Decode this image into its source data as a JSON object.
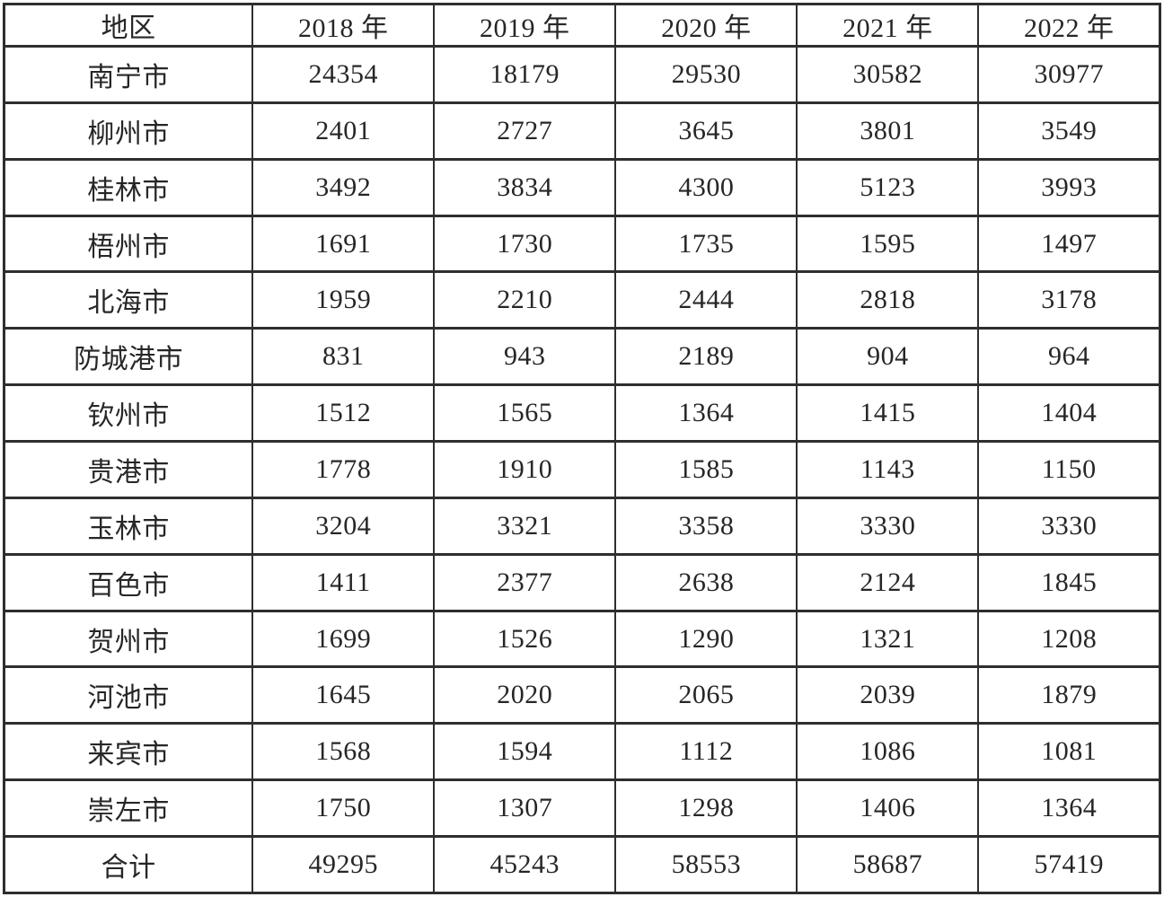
{
  "table": {
    "columns": [
      "地区",
      "2018 年",
      "2019 年",
      "2020 年",
      "2021 年",
      "2022 年"
    ],
    "rows": [
      [
        "南宁市",
        "24354",
        "18179",
        "29530",
        "30582",
        "30977"
      ],
      [
        "柳州市",
        "2401",
        "2727",
        "3645",
        "3801",
        "3549"
      ],
      [
        "桂林市",
        "3492",
        "3834",
        "4300",
        "5123",
        "3993"
      ],
      [
        "梧州市",
        "1691",
        "1730",
        "1735",
        "1595",
        "1497"
      ],
      [
        "北海市",
        "1959",
        "2210",
        "2444",
        "2818",
        "3178"
      ],
      [
        "防城港市",
        "831",
        "943",
        "2189",
        "904",
        "964"
      ],
      [
        "钦州市",
        "1512",
        "1565",
        "1364",
        "1415",
        "1404"
      ],
      [
        "贵港市",
        "1778",
        "1910",
        "1585",
        "1143",
        "1150"
      ],
      [
        "玉林市",
        "3204",
        "3321",
        "3358",
        "3330",
        "3330"
      ],
      [
        "百色市",
        "1411",
        "2377",
        "2638",
        "2124",
        "1845"
      ],
      [
        "贺州市",
        "1699",
        "1526",
        "1290",
        "1321",
        "1208"
      ],
      [
        "河池市",
        "1645",
        "2020",
        "2065",
        "2039",
        "1879"
      ],
      [
        "来宾市",
        "1568",
        "1594",
        "1112",
        "1086",
        "1081"
      ],
      [
        "崇左市",
        "1750",
        "1307",
        "1298",
        "1406",
        "1364"
      ],
      [
        "合计",
        "49295",
        "45243",
        "58553",
        "58687",
        "57419"
      ]
    ]
  },
  "chart_data": {
    "type": "table",
    "columns": [
      "地区",
      "2018 年",
      "2019 年",
      "2020 年",
      "2021 年",
      "2022 年"
    ],
    "categories": [
      "南宁市",
      "柳州市",
      "桂林市",
      "梧州市",
      "北海市",
      "防城港市",
      "钦州市",
      "贵港市",
      "玉林市",
      "百色市",
      "贺州市",
      "河池市",
      "来宾市",
      "崇左市",
      "合计"
    ],
    "series": [
      {
        "name": "2018 年",
        "values": [
          24354,
          2401,
          3492,
          1691,
          1959,
          831,
          1512,
          1778,
          3204,
          1411,
          1699,
          1645,
          1568,
          1750,
          49295
        ]
      },
      {
        "name": "2019 年",
        "values": [
          18179,
          2727,
          3834,
          1730,
          2210,
          943,
          1565,
          1910,
          3321,
          2377,
          1526,
          2020,
          1594,
          1307,
          45243
        ]
      },
      {
        "name": "2020 年",
        "values": [
          29530,
          3645,
          4300,
          1735,
          2444,
          2189,
          1364,
          1585,
          3358,
          2638,
          1290,
          2065,
          1112,
          1298,
          58553
        ]
      },
      {
        "name": "2021 年",
        "values": [
          30582,
          3801,
          5123,
          1595,
          2818,
          904,
          1415,
          1143,
          3330,
          2124,
          1321,
          2039,
          1086,
          1406,
          58687
        ]
      },
      {
        "name": "2022 年",
        "values": [
          30977,
          3549,
          3993,
          1497,
          3178,
          964,
          1404,
          1150,
          3330,
          1845,
          1208,
          1879,
          1081,
          1364,
          57419
        ]
      }
    ]
  },
  "colors": {
    "border": "#2e2e2e",
    "text": "#262626",
    "background": "#ffffff"
  }
}
